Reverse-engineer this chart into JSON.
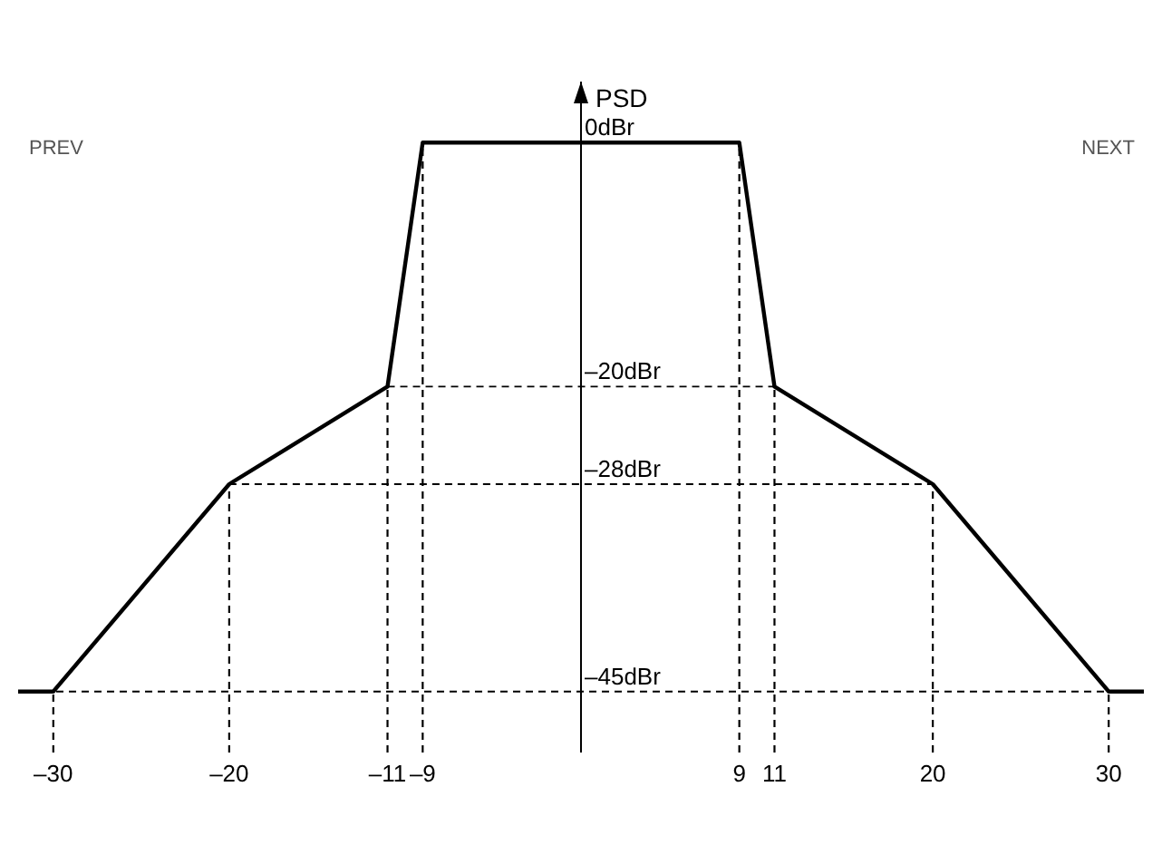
{
  "chart_data": {
    "type": "line",
    "ylabel": "PSD",
    "x": [
      -32,
      -30,
      -20,
      -11,
      -9,
      9,
      11,
      20,
      30,
      32
    ],
    "series": [
      {
        "color": "#000000",
        "values": [
          -45,
          -45,
          -28,
          -20,
          0,
          0,
          -20,
          -28,
          -45,
          -45
        ]
      }
    ],
    "xlim": [
      -32,
      32
    ],
    "ylim": [
      -50,
      5
    ],
    "xticks": [
      {
        "value": -30,
        "label": "–30"
      },
      {
        "value": -20,
        "label": "–20"
      },
      {
        "value": -11,
        "label": "–11"
      },
      {
        "value": -9,
        "label": "–9"
      },
      {
        "value": 9,
        "label": "9"
      },
      {
        "value": 11,
        "label": "11"
      },
      {
        "value": 20,
        "label": "20"
      },
      {
        "value": 30,
        "label": "30"
      }
    ],
    "yticks": [
      {
        "value": 0,
        "label": "0dBr"
      },
      {
        "value": -20,
        "label": "–20dBr"
      },
      {
        "value": -28,
        "label": "–28dBr"
      },
      {
        "value": -45,
        "label": "–45dBr"
      }
    ],
    "annotations": [
      "PREV",
      "NEXT"
    ],
    "line_style": "solid",
    "ref_lines": [
      {
        "axis": "x",
        "value": -30,
        "line_style": "dashed",
        "color": "#000000"
      },
      {
        "axis": "x",
        "value": -20,
        "line_style": "dashed",
        "color": "#000000"
      },
      {
        "axis": "x",
        "value": -11,
        "line_style": "dashed",
        "color": "#000000"
      },
      {
        "axis": "x",
        "value": -9,
        "line_style": "dashed",
        "color": "#000000"
      },
      {
        "axis": "x",
        "value": 9,
        "line_style": "dashed",
        "color": "#000000"
      },
      {
        "axis": "x",
        "value": 11,
        "line_style": "dashed",
        "color": "#000000"
      },
      {
        "axis": "x",
        "value": 20,
        "line_style": "dashed",
        "color": "#000000"
      },
      {
        "axis": "x",
        "value": 30,
        "line_style": "dashed",
        "color": "#000000"
      },
      {
        "axis": "y",
        "value": -20,
        "line_style": "dashed",
        "color": "#000000"
      },
      {
        "axis": "y",
        "value": -28,
        "line_style": "dashed",
        "color": "#000000"
      },
      {
        "axis": "y",
        "value": -45,
        "line_style": "dashed",
        "color": "#000000"
      }
    ]
  }
}
